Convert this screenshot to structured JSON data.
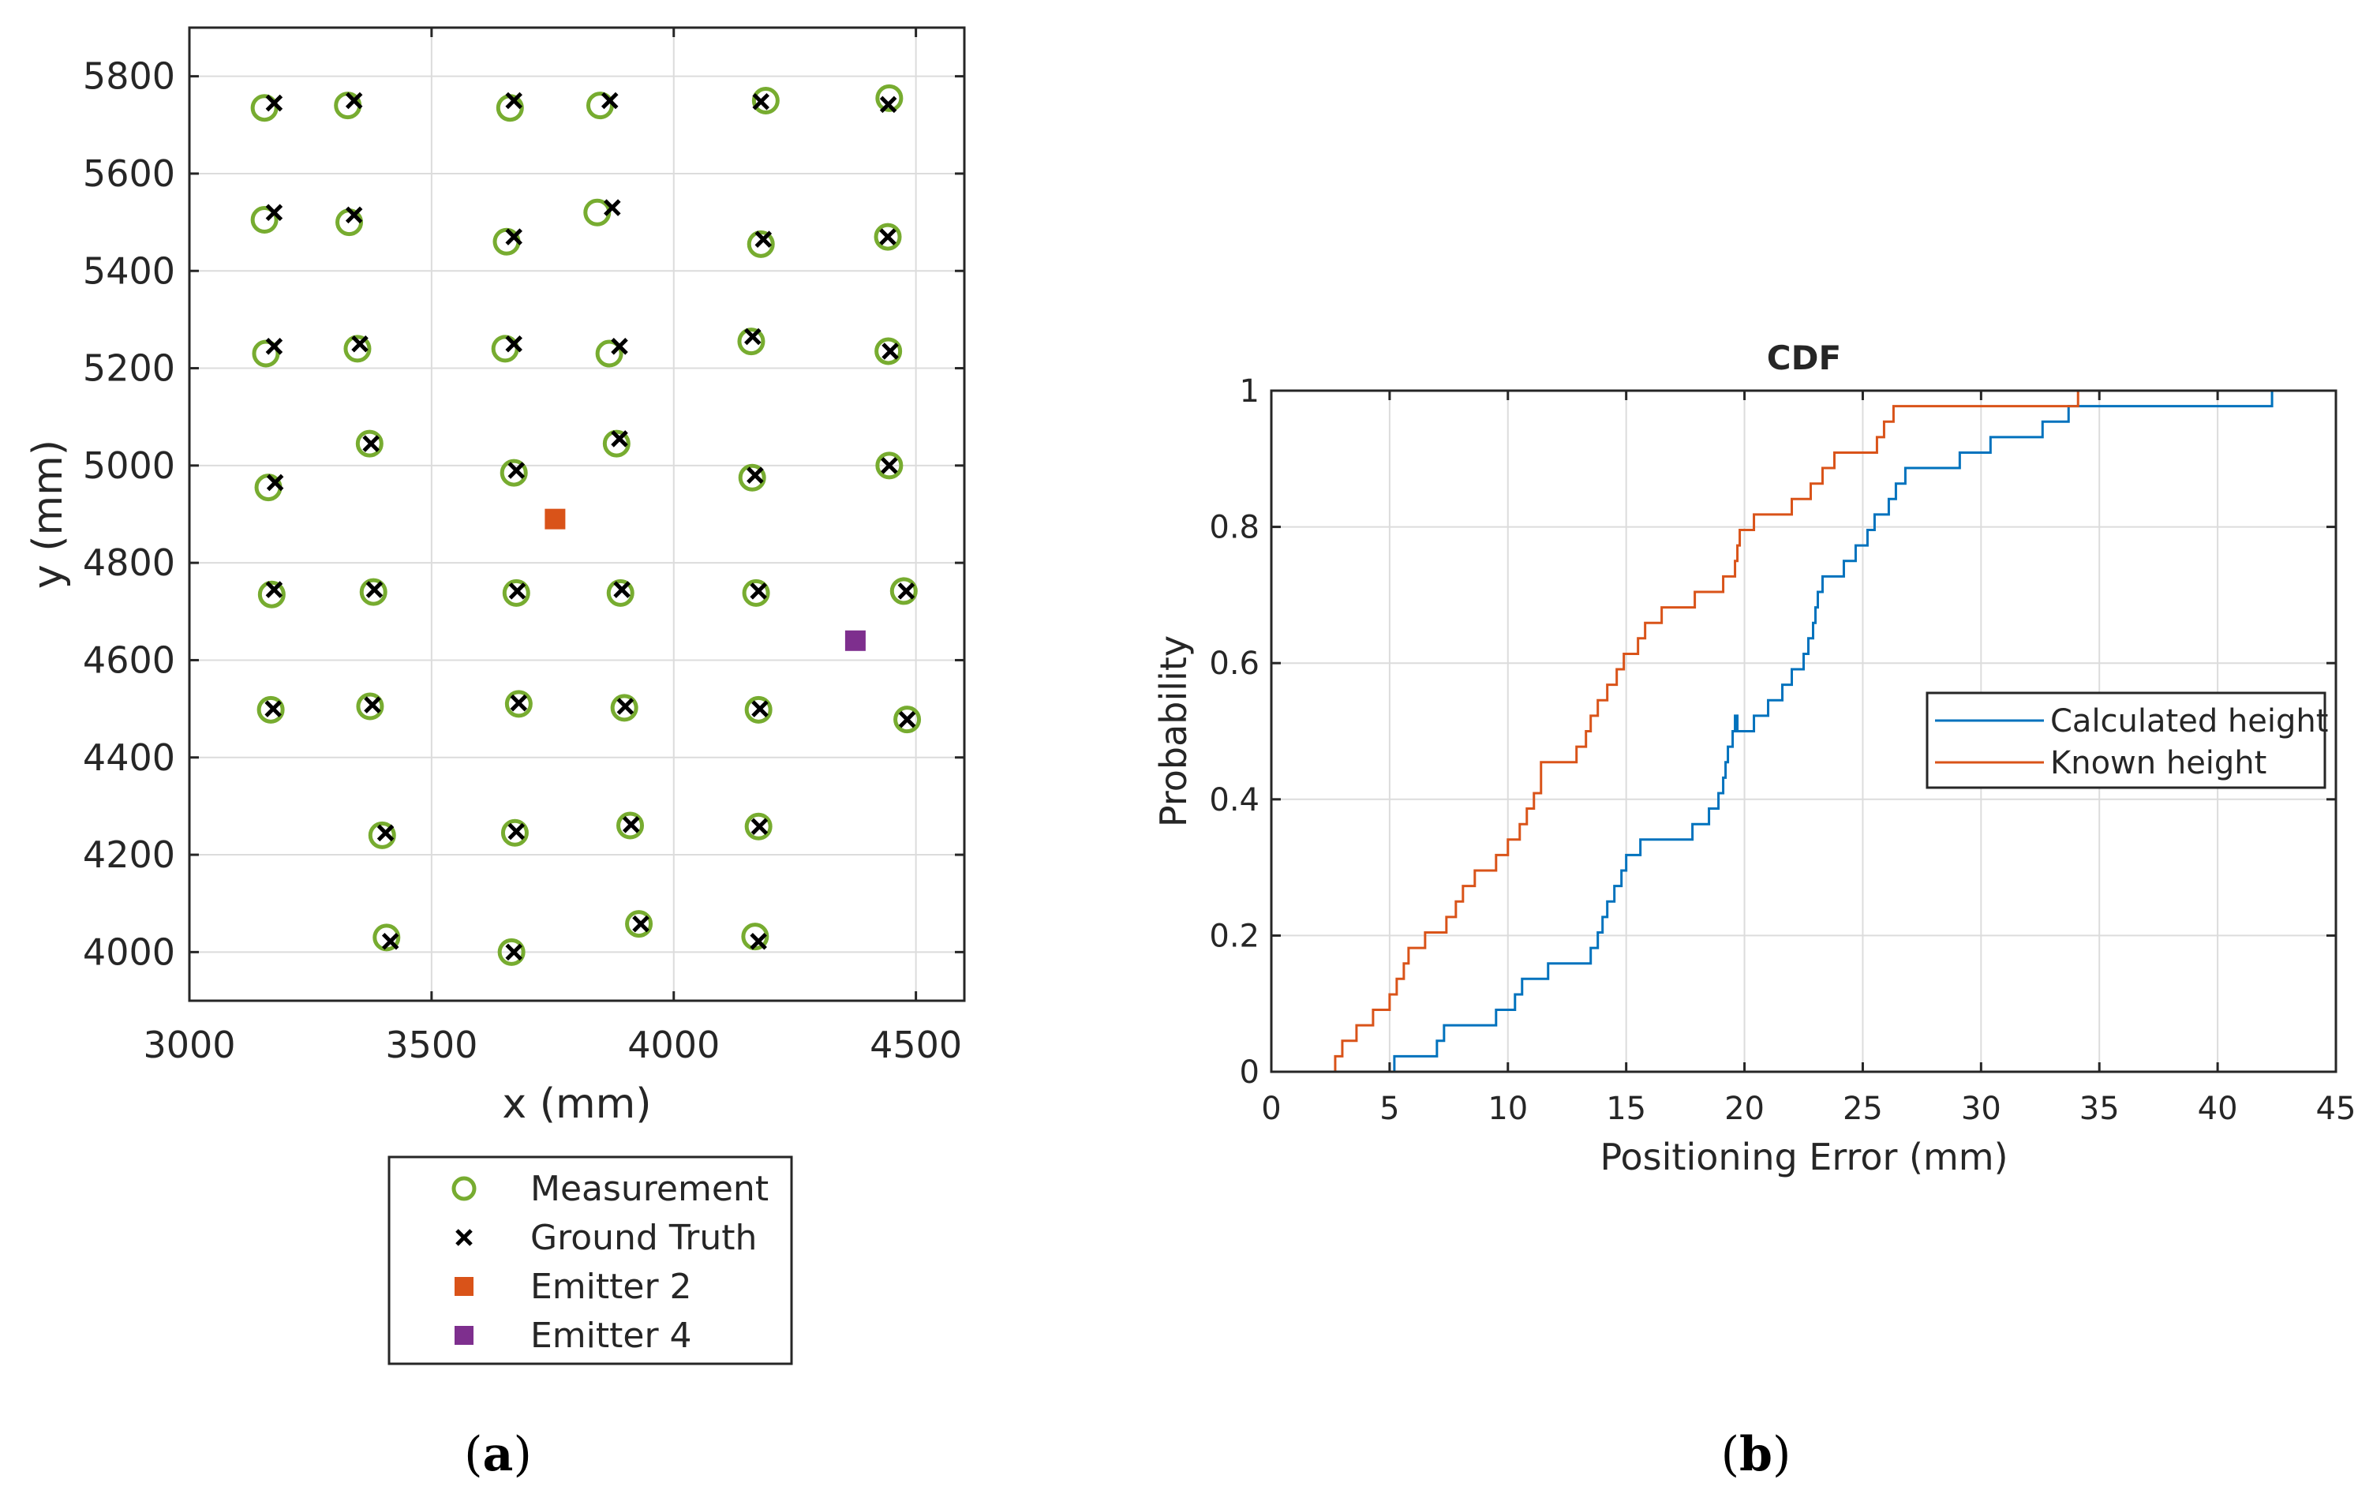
{
  "chart_data": [
    {
      "type": "scatter",
      "panel_label": "a",
      "title": "",
      "xlabel": "x (mm)",
      "ylabel": "y (mm)",
      "xlim": [
        3000,
        4600
      ],
      "ylim": [
        3900,
        5900
      ],
      "xticks": [
        3000,
        3500,
        4000,
        4500
      ],
      "yticks": [
        4000,
        4200,
        4400,
        4600,
        4800,
        5000,
        5200,
        5400,
        5600,
        5800
      ],
      "grid": true,
      "legend": {
        "placement": "below",
        "entries": [
          "Measurement",
          "Ground Truth",
          "Emitter 2",
          "Emitter 4"
        ]
      },
      "series": [
        {
          "name": "Measurement",
          "marker": "circle",
          "color": "#77AC30",
          "points": [
            [
              3155,
              5735
            ],
            [
              3327,
              5740
            ],
            [
              3662,
              5735
            ],
            [
              3848,
              5740
            ],
            [
              4190,
              5750
            ],
            [
              4445,
              5755
            ],
            [
              3155,
              5505
            ],
            [
              3330,
              5500
            ],
            [
              3655,
              5460
            ],
            [
              3842,
              5520
            ],
            [
              4180,
              5455
            ],
            [
              4442,
              5470
            ],
            [
              3158,
              5230
            ],
            [
              3347,
              5240
            ],
            [
              3652,
              5240
            ],
            [
              3867,
              5230
            ],
            [
              4160,
              5255
            ],
            [
              4443,
              5235
            ],
            [
              3163,
              4955
            ],
            [
              3372,
              5045
            ],
            [
              3670,
              4985
            ],
            [
              3882,
              5045
            ],
            [
              4162,
              4975
            ],
            [
              4445,
              5000
            ],
            [
              3170,
              4735
            ],
            [
              3380,
              4740
            ],
            [
              3675,
              4738
            ],
            [
              3890,
              4738
            ],
            [
              4170,
              4738
            ],
            [
              4475,
              4742
            ],
            [
              3168,
              4498
            ],
            [
              3373,
              4505
            ],
            [
              3680,
              4510
            ],
            [
              3898,
              4502
            ],
            [
              4175,
              4498
            ],
            [
              4482,
              4478
            ],
            [
              3398,
              4240
            ],
            [
              3672,
              4245
            ],
            [
              3910,
              4260
            ],
            [
              4175,
              4258
            ],
            [
              3407,
              4030
            ],
            [
              3665,
              4000
            ],
            [
              3928,
              4058
            ],
            [
              4168,
              4032
            ]
          ]
        },
        {
          "name": "Ground Truth",
          "marker": "x",
          "color": "#000000",
          "points": [
            [
              3175,
              5745
            ],
            [
              3340,
              5750
            ],
            [
              3670,
              5750
            ],
            [
              3868,
              5750
            ],
            [
              4180,
              5748
            ],
            [
              4443,
              5742
            ],
            [
              3175,
              5520
            ],
            [
              3340,
              5515
            ],
            [
              3670,
              5470
            ],
            [
              3873,
              5530
            ],
            [
              4185,
              5465
            ],
            [
              4442,
              5470
            ],
            [
              3175,
              5245
            ],
            [
              3352,
              5250
            ],
            [
              3670,
              5250
            ],
            [
              3888,
              5245
            ],
            [
              4163,
              5265
            ],
            [
              4447,
              5235
            ],
            [
              3177,
              4965
            ],
            [
              3375,
              5045
            ],
            [
              3675,
              4990
            ],
            [
              3888,
              5055
            ],
            [
              4168,
              4980
            ],
            [
              4445,
              5000
            ],
            [
              3175,
              4745
            ],
            [
              3382,
              4745
            ],
            [
              3677,
              4742
            ],
            [
              3893,
              4745
            ],
            [
              4175,
              4742
            ],
            [
              4480,
              4742
            ],
            [
              3173,
              4500
            ],
            [
              3378,
              4508
            ],
            [
              3680,
              4512
            ],
            [
              3900,
              4505
            ],
            [
              4178,
              4500
            ],
            [
              4482,
              4478
            ],
            [
              3405,
              4245
            ],
            [
              3675,
              4248
            ],
            [
              3912,
              4262
            ],
            [
              4177,
              4258
            ],
            [
              3415,
              4022
            ],
            [
              3670,
              4000
            ],
            [
              3932,
              4058
            ],
            [
              4175,
              4022
            ]
          ]
        },
        {
          "name": "Emitter 2",
          "marker": "square",
          "color": "#D95319",
          "points": [
            [
              3755,
              4890
            ]
          ]
        },
        {
          "name": "Emitter 4",
          "marker": "square",
          "color": "#7E2F8E",
          "points": [
            [
              4375,
              4640
            ]
          ]
        }
      ]
    },
    {
      "type": "line",
      "panel_label": "b",
      "title": "CDF",
      "xlabel": "Positioning Error (mm)",
      "ylabel": "Probability",
      "xlim": [
        0,
        45
      ],
      "ylim": [
        0,
        1
      ],
      "xticks": [
        0,
        5,
        10,
        15,
        20,
        25,
        30,
        35,
        40,
        45
      ],
      "yticks": [
        0,
        0.2,
        0.4,
        0.6,
        0.8,
        1
      ],
      "grid": true,
      "legend": {
        "placement": "right",
        "entries": [
          "Calculated height",
          "Known height"
        ]
      },
      "series": [
        {
          "name": "Calculated height",
          "color": "#0072BD",
          "step_x": [
            5.2,
            5.4,
            7.0,
            7.3,
            9.5,
            10.3,
            10.6,
            11.7,
            13.5,
            13.8,
            14.0,
            14.2,
            14.5,
            14.8,
            15.0,
            15.6,
            17.8,
            18.5,
            18.9,
            19.1,
            19.2,
            19.3,
            19.5,
            19.6,
            19.7,
            20.4,
            21.0,
            21.6,
            22.0,
            22.5,
            22.7,
            22.9,
            23.0,
            23.1,
            23.3,
            24.2,
            24.7,
            25.2,
            25.5,
            26.1,
            26.4,
            26.8,
            28.0,
            29.1,
            30.4,
            32.6,
            33.7,
            34.3,
            42.3
          ],
          "step_y": [
            0.0227,
            0.0227,
            0.0455,
            0.0682,
            0.0909,
            0.1136,
            0.1364,
            0.1591,
            0.1818,
            0.2045,
            0.2273,
            0.25,
            0.2727,
            0.2955,
            0.3182,
            0.3409,
            0.3636,
            0.3864,
            0.4091,
            0.4318,
            0.4545,
            0.4773,
            0.5,
            0.5227,
            0.5,
            0.5227,
            0.5455,
            0.5682,
            0.5909,
            0.6136,
            0.6364,
            0.6591,
            0.6818,
            0.7045,
            0.7273,
            0.75,
            0.7727,
            0.7955,
            0.8182,
            0.8409,
            0.8636,
            0.8864,
            0.8864,
            0.9091,
            0.9318,
            0.9545,
            0.9773,
            0.9773,
            1.0
          ]
        },
        {
          "name": "Known height",
          "color": "#D95319",
          "step_x": [
            2.7,
            3.0,
            3.6,
            4.3,
            5.0,
            5.3,
            5.6,
            5.8,
            6.5,
            7.4,
            7.8,
            8.1,
            8.6,
            9.5,
            10.0,
            10.5,
            10.8,
            11.1,
            11.4,
            12.9,
            13.3,
            13.5,
            13.8,
            14.2,
            14.6,
            14.9,
            15.5,
            15.8,
            16.5,
            17.9,
            19.1,
            19.6,
            19.7,
            19.8,
            20.4,
            22.0,
            22.8,
            23.3,
            23.8,
            25.6,
            25.9,
            26.3,
            26.8,
            34.1
          ],
          "step_y": [
            0.0227,
            0.0455,
            0.0682,
            0.0909,
            0.1136,
            0.1364,
            0.1591,
            0.1818,
            0.2045,
            0.2273,
            0.25,
            0.2727,
            0.2955,
            0.3182,
            0.3409,
            0.3636,
            0.3864,
            0.4091,
            0.4545,
            0.4773,
            0.5,
            0.5227,
            0.5455,
            0.5682,
            0.5909,
            0.6136,
            0.6364,
            0.6591,
            0.6818,
            0.7045,
            0.7273,
            0.75,
            0.7727,
            0.7955,
            0.8182,
            0.8409,
            0.8636,
            0.8864,
            0.9091,
            0.9318,
            0.9545,
            0.9773,
            0.9773,
            1.0
          ]
        }
      ]
    }
  ]
}
